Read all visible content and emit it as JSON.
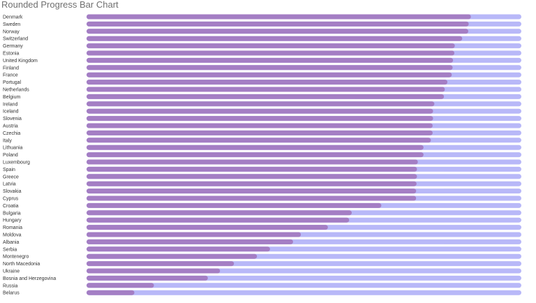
{
  "title": "Rounded Progress Bar Chart",
  "chart_data": {
    "type": "bar",
    "orientation": "horizontal",
    "title": "Rounded Progress Bar Chart",
    "categories": [
      "Denmark",
      "Sweden",
      "Norway",
      "Switzerland",
      "Germany",
      "Estonia",
      "United Kingdom",
      "Finland",
      "France",
      "Portugal",
      "Netherlands",
      "Belgium",
      "Ireland",
      "Iceland",
      "Slovenia",
      "Austria",
      "Czechia",
      "Italy",
      "Lithuania",
      "Poland",
      "Luxembourg",
      "Spain",
      "Greece",
      "Latvia",
      "Slovakia",
      "Cyprus",
      "Croatia",
      "Bulgaria",
      "Hungary",
      "Romania",
      "Moldova",
      "Albania",
      "Serbia",
      "Montenegro",
      "North Macedonia",
      "Ukraine",
      "Bosnia and Herzegovina",
      "Russia",
      "Belarus"
    ],
    "values": [
      0.884,
      0.879,
      0.878,
      0.864,
      0.847,
      0.846,
      0.843,
      0.842,
      0.84,
      0.83,
      0.824,
      0.822,
      0.8,
      0.797,
      0.797,
      0.796,
      0.796,
      0.792,
      0.775,
      0.775,
      0.762,
      0.76,
      0.76,
      0.759,
      0.758,
      0.758,
      0.678,
      0.61,
      0.604,
      0.555,
      0.493,
      0.475,
      0.422,
      0.392,
      0.339,
      0.307,
      0.279,
      0.155,
      0.11
    ],
    "range": [
      0,
      1
    ],
    "colors": {
      "progress": "#a47ec4",
      "track": "#b8b8f8"
    },
    "grid": false,
    "legend": "none"
  }
}
